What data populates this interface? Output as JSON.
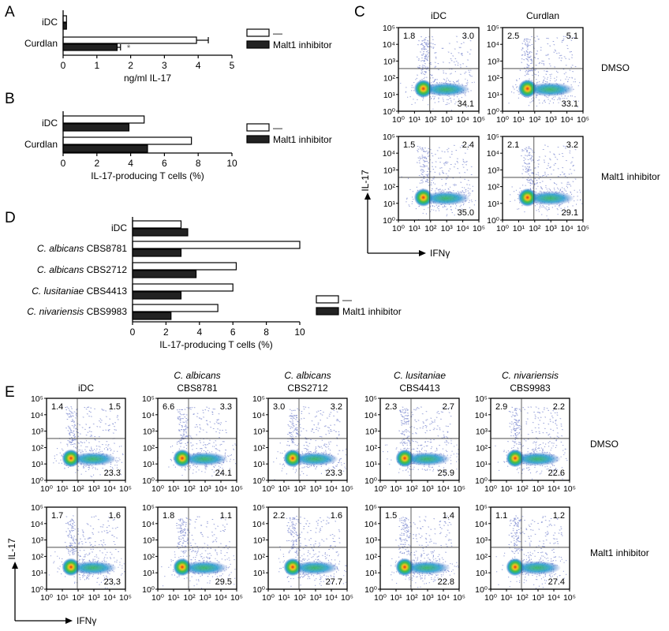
{
  "panels": {
    "A": "A",
    "B": "B",
    "C": "C",
    "D": "D",
    "E": "E"
  },
  "legend": {
    "untreated": "—",
    "malt1": "Malt1 inhibitor"
  },
  "chart_data": [
    {
      "id": "A",
      "type": "bar",
      "orientation": "horizontal",
      "categories": [
        "iDC",
        "Curdlan"
      ],
      "series": [
        {
          "name": "—",
          "values": [
            0.1,
            3.95
          ],
          "error": [
            0,
            0.35
          ]
        },
        {
          "name": "Malt1 inhibitor",
          "values": [
            0.1,
            1.6
          ],
          "error": [
            0,
            0.1
          ]
        }
      ],
      "xlabel": "ng/ml IL-17",
      "xlim": [
        0,
        5
      ],
      "xticks": [
        "0",
        "1",
        "2",
        "3",
        "4",
        "5"
      ],
      "annotation": "*"
    },
    {
      "id": "B",
      "type": "bar",
      "orientation": "horizontal",
      "categories": [
        "iDC",
        "Curdlan"
      ],
      "series": [
        {
          "name": "—",
          "values": [
            4.8,
            7.6
          ]
        },
        {
          "name": "Malt1 inhibitor",
          "values": [
            3.9,
            5.0
          ]
        }
      ],
      "xlabel": "IL-17-producing T cells (%)",
      "xlim": [
        0,
        10
      ],
      "xticks": [
        "0",
        "2",
        "4",
        "6",
        "8",
        "10"
      ]
    },
    {
      "id": "D",
      "type": "bar",
      "orientation": "horizontal",
      "categories": [
        {
          "species": "",
          "strain": "iDC"
        },
        {
          "species": "C. albicans",
          "strain": "CBS8781"
        },
        {
          "species": "C. albicans",
          "strain": "CBS2712"
        },
        {
          "species": "C. lusitaniae",
          "strain": "CBS4413"
        },
        {
          "species": "C. nivariensis",
          "strain": "CBS9983"
        }
      ],
      "series": [
        {
          "name": "—",
          "values": [
            2.9,
            10.0,
            6.2,
            6.0,
            5.1
          ]
        },
        {
          "name": "Malt1 inhibitor",
          "values": [
            3.3,
            2.9,
            3.8,
            2.9,
            2.3
          ]
        }
      ],
      "xlabel": "IL-17-producing T cells (%)",
      "xlim": [
        0,
        10
      ],
      "xticks": [
        "0",
        "2",
        "4",
        "6",
        "8",
        "10"
      ]
    }
  ],
  "flow": {
    "ticks": [
      "10⁰",
      "10¹",
      "10²",
      "10³",
      "10⁴",
      "10⁵"
    ],
    "ylabel": "IL-17",
    "xlabel": "IFNγ",
    "C": {
      "columns": [
        {
          "top": "",
          "bottom": "iDC"
        },
        {
          "top": "",
          "bottom": "Curdlan"
        }
      ],
      "rows": [
        "DMSO",
        "Malt1 inhibitor"
      ],
      "plots": [
        [
          {
            "ul": "1.8",
            "ur": "3.0",
            "lr": "34.1"
          },
          {
            "ul": "2.5",
            "ur": "5.1",
            "lr": "33.1"
          }
        ],
        [
          {
            "ul": "1.5",
            "ur": "2.4",
            "lr": "35.0"
          },
          {
            "ul": "2.1",
            "ur": "3.2",
            "lr": "29.1"
          }
        ]
      ]
    },
    "E": {
      "columns": [
        {
          "top": "",
          "bottom": "iDC"
        },
        {
          "top": "C. albicans",
          "bottom": "CBS8781"
        },
        {
          "top": "C. albicans",
          "bottom": "CBS2712"
        },
        {
          "top": "C. lusitaniae",
          "bottom": "CBS4413"
        },
        {
          "top": "C. nivariensis",
          "bottom": "CBS9983"
        }
      ],
      "rows": [
        "DMSO",
        "Malt1 inhibitor"
      ],
      "plots": [
        [
          {
            "ul": "1.4",
            "ur": "1.5",
            "lr": "23.3"
          },
          {
            "ul": "6.6",
            "ur": "3.3",
            "lr": "24.1"
          },
          {
            "ul": "3.0",
            "ur": "3.2",
            "lr": "23.3"
          },
          {
            "ul": "2.3",
            "ur": "2.7",
            "lr": "25.9"
          },
          {
            "ul": "2.9",
            "ur": "2.2",
            "lr": "22.6"
          }
        ],
        [
          {
            "ul": "1.7",
            "ur": "1.6",
            "lr": "23.3"
          },
          {
            "ul": "1.8",
            "ur": "1.1",
            "lr": "29.5"
          },
          {
            "ul": "2.2",
            "ur": "1.6",
            "lr": "27.7"
          },
          {
            "ul": "1.5",
            "ur": "1.4",
            "lr": "22.8"
          },
          {
            "ul": "1.1",
            "ur": "1.2",
            "lr": "27.4"
          }
        ]
      ]
    }
  }
}
